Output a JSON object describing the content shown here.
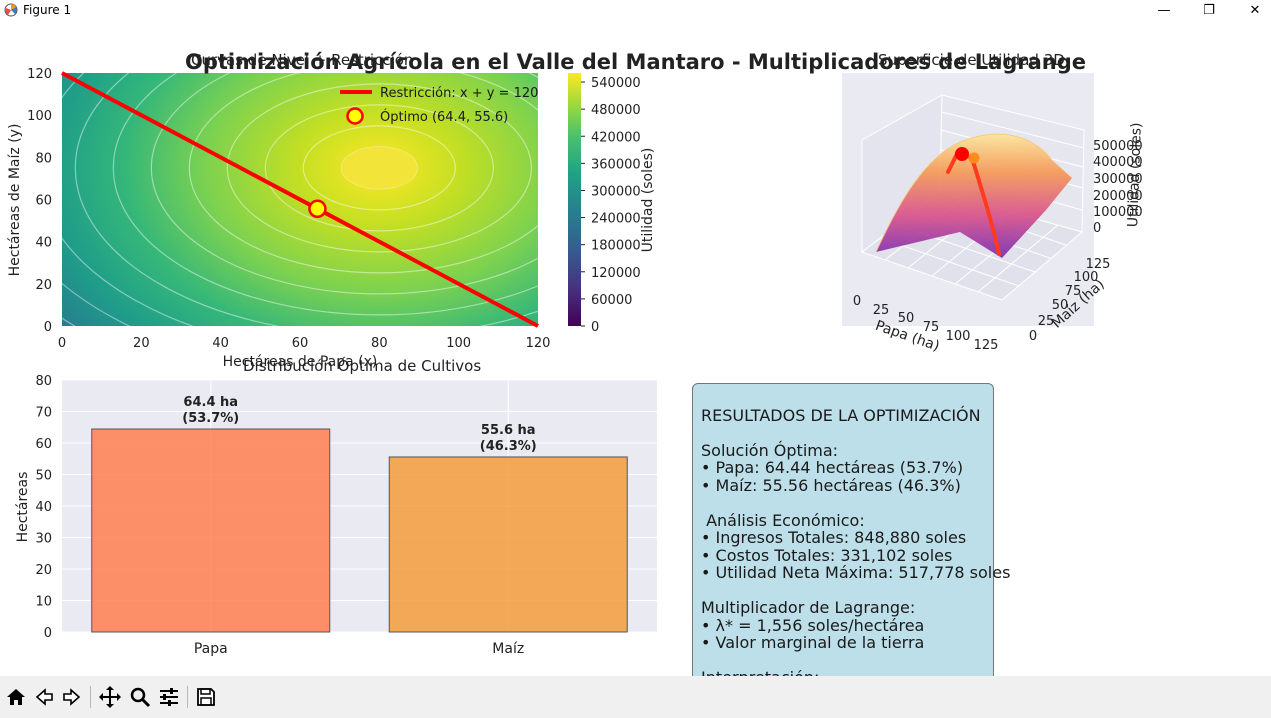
{
  "window": {
    "title": "Figure 1",
    "minimize_glyph": "—",
    "maximize_glyph": "❐",
    "close_glyph": "✕"
  },
  "figure": {
    "suptitle": "Optimización Agrícola en el Valle del Mantaro - Multiplicadores de Lagrange"
  },
  "contour_panel": {
    "title": "Curvas de Nivel + Restricción",
    "xlabel": "Hectáreas de Papa (x)",
    "ylabel": "Hectáreas de Maíz (y)",
    "legend": {
      "constraint": "Restricción: x + y = 120",
      "optimum": "Óptimo (64.4, 55.6)"
    },
    "colorbar_label": "Utilidad (soles)"
  },
  "surface_panel": {
    "title": "Superficie de Utilidad 3D",
    "xlabel": "Papa (ha)",
    "ylabel": "Maíz (ha)",
    "zlabel": "Utilidad (soles)"
  },
  "bar_panel": {
    "title": "Distribución Óptima de Cultivos",
    "ylabel": "Hectáreas"
  },
  "results_box": {
    "lines": [
      "",
      "RESULTADOS DE LA OPTIMIZACIÓN",
      "",
      "Solución Óptima:",
      "• Papa: 64.44 hectáreas (53.7%)",
      "• Maíz: 55.56 hectáreas (46.3%)",
      "",
      " Análisis Económico:",
      "• Ingresos Totales: 848,880 soles",
      "• Costos Totales: 331,102 soles",
      "• Utilidad Neta Máxima: 517,778 soles",
      "",
      "Multiplicador de Lagrange:",
      "• λ* = 1,556 soles/hectárea",
      "• Valor marginal de la tierra",
      "",
      "Interpretación:"
    ]
  },
  "toolbar": {
    "buttons": [
      "home-icon",
      "back-icon",
      "forward-icon",
      "pan-icon",
      "zoom-icon",
      "configure-icon",
      "save-icon"
    ]
  },
  "colors": {
    "constraint_line": "#ff0000",
    "optimum_marker_fill": "#ffff00",
    "bar_papa": "#ff7f50",
    "bar_maiz": "#f39c3c",
    "axes_bg": "#eaeaf2",
    "results_box_bg": "#add8e6"
  },
  "chart_data": [
    {
      "type": "contour",
      "title": "Curvas de Nivel + Restricción",
      "xlabel": "Hectáreas de Papa (x)",
      "ylabel": "Hectáreas de Maíz (y)",
      "xlim": [
        0,
        120
      ],
      "ylim": [
        0,
        120
      ],
      "xticks": [
        "0",
        "20",
        "40",
        "60",
        "80",
        "100",
        "120"
      ],
      "yticks": [
        "0",
        "20",
        "40",
        "60",
        "80",
        "100",
        "120"
      ],
      "peak": {
        "x": 80,
        "y": 75
      },
      "constraint": {
        "label": "Restricción: x + y = 120",
        "points": [
          [
            0,
            120
          ],
          [
            120,
            0
          ]
        ]
      },
      "optimum": {
        "label": "Óptimo (64.4, 55.6)",
        "x": 64.4,
        "y": 55.6
      },
      "colorbar": {
        "label": "Utilidad (soles)",
        "range": [
          0,
          560000
        ],
        "ticks": [
          "0",
          "60000",
          "120000",
          "180000",
          "240000",
          "300000",
          "360000",
          "420000",
          "480000",
          "540000"
        ]
      }
    },
    {
      "type": "surface3d",
      "title": "Superficie de Utilidad 3D",
      "xlabel": "Papa (ha)",
      "ylabel": "Maíz (ha)",
      "zlabel": "Utilidad (soles)",
      "xticks": [
        "0",
        "25",
        "50",
        "75",
        "100",
        "125"
      ],
      "yticks": [
        "0",
        "25",
        "50",
        "75",
        "100",
        "125"
      ],
      "zticks": [
        "0",
        "100000",
        "200000",
        "300000",
        "400000",
        "500000"
      ]
    },
    {
      "type": "bar",
      "title": "Distribución Óptima de Cultivos",
      "ylabel": "Hectáreas",
      "categories": [
        "Papa",
        "Maíz"
      ],
      "values": [
        64.44,
        55.56
      ],
      "bar_labels": [
        [
          "64.4 ha",
          "(53.7%)"
        ],
        [
          "55.6 ha",
          "(46.3%)"
        ]
      ],
      "ylim": [
        0,
        80
      ],
      "yticks": [
        "0",
        "10",
        "20",
        "30",
        "40",
        "50",
        "60",
        "70",
        "80"
      ]
    }
  ]
}
